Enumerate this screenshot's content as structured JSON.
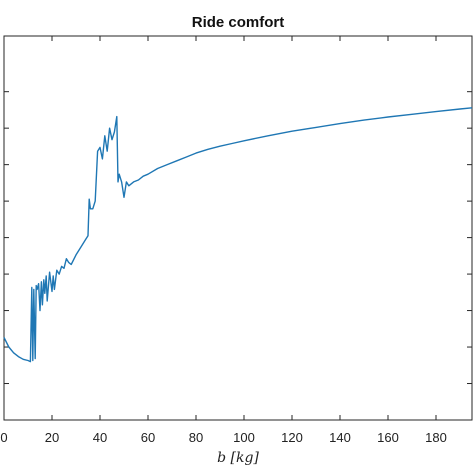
{
  "chart_data": {
    "type": "line",
    "title": "Ride comfort",
    "xlabel": "b [kg]",
    "ylabel": "",
    "xlim": [
      0,
      195
    ],
    "ylim": [
      0,
      1
    ],
    "grid": false,
    "x_ticks": [
      0,
      20,
      40,
      60,
      80,
      100,
      120,
      140,
      160,
      180
    ],
    "x_tick_labels": [
      "0",
      "20",
      "40",
      "60",
      "80",
      "100",
      "120",
      "140",
      "160",
      "180"
    ],
    "y_ticks": [
      0.095,
      0.19,
      0.285,
      0.38,
      0.475,
      0.57,
      0.665,
      0.76,
      0.855
    ],
    "y_tick_labels": [
      "",
      "",
      "",
      "",
      "",
      "",
      "",
      "",
      ""
    ],
    "series": [
      {
        "color": "#1f77b4",
        "x": [
          0,
          2,
          4,
          6,
          8,
          10,
          11,
          11.6,
          12,
          12.4,
          13,
          13.4,
          13.8,
          14.4,
          15,
          15.6,
          16,
          16.6,
          17,
          17.6,
          18,
          19,
          20,
          20.5,
          21,
          22,
          23,
          24,
          25,
          26,
          27,
          28,
          30,
          32,
          34,
          35,
          35.5,
          36,
          37,
          38,
          39,
          40,
          41,
          42,
          43,
          44,
          45,
          46,
          47,
          47.5,
          48,
          49,
          50,
          51,
          52,
          54,
          56,
          58,
          60,
          64,
          68,
          72,
          76,
          80,
          85,
          90,
          95,
          100,
          110,
          120,
          130,
          140,
          150,
          160,
          170,
          180,
          190,
          195
        ],
        "y": [
          0.215,
          0.19,
          0.175,
          0.165,
          0.158,
          0.155,
          0.152,
          0.345,
          0.155,
          0.34,
          0.16,
          0.35,
          0.34,
          0.355,
          0.285,
          0.36,
          0.3,
          0.365,
          0.33,
          0.375,
          0.31,
          0.385,
          0.335,
          0.375,
          0.34,
          0.39,
          0.38,
          0.4,
          0.395,
          0.42,
          0.41,
          0.405,
          0.43,
          0.45,
          0.47,
          0.48,
          0.575,
          0.55,
          0.55,
          0.57,
          0.7,
          0.71,
          0.68,
          0.74,
          0.7,
          0.76,
          0.73,
          0.75,
          0.79,
          0.62,
          0.64,
          0.62,
          0.58,
          0.62,
          0.61,
          0.62,
          0.625,
          0.635,
          0.64,
          0.655,
          0.665,
          0.675,
          0.685,
          0.695,
          0.705,
          0.713,
          0.72,
          0.727,
          0.74,
          0.752,
          0.762,
          0.772,
          0.781,
          0.789,
          0.796,
          0.803,
          0.81,
          0.813
        ]
      }
    ]
  }
}
